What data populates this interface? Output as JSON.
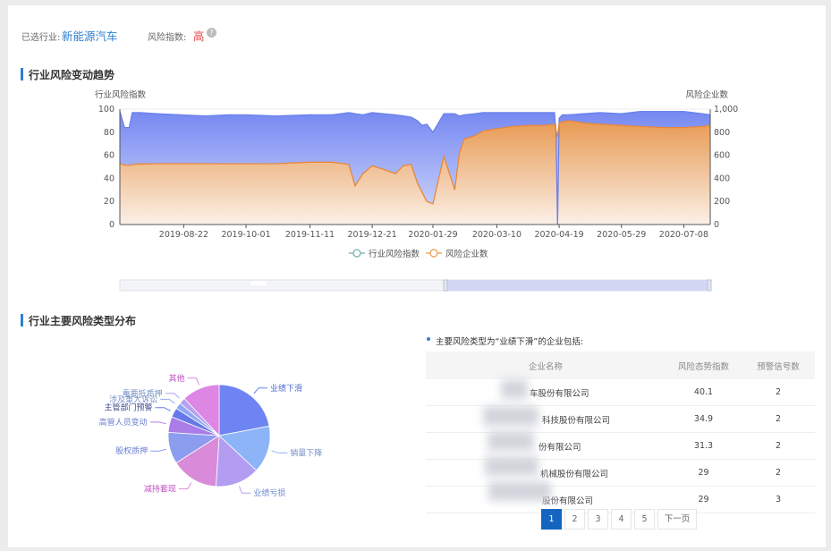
{
  "filter": {
    "industry_label": "已选行业:",
    "industry_value": "新能源汽车",
    "risk_label": "风险指数:",
    "risk_value": "高",
    "help_icon": "question-circle-icon"
  },
  "trend": {
    "title": "行业风险变动趋势",
    "legend_label": [
      "行业风险指数",
      "风险企业数"
    ]
  },
  "distribution": {
    "title": "行业主要风险类型分布",
    "list_caption": "主要风险类型为“业绩下滑”的企业包括:",
    "columns": [
      "企业名称",
      "风险态势指数",
      "预警信号数"
    ],
    "rows": [
      {
        "name": "车股份有限公司",
        "index": "40.1",
        "signals": "2"
      },
      {
        "name": "科技股份有限公司",
        "index": "34.9",
        "signals": "2"
      },
      {
        "name": "份有限公司",
        "index": "31.3",
        "signals": "2"
      },
      {
        "name": "机械股份有限公司",
        "index": "29",
        "signals": "2"
      },
      {
        "name": "股份有限公司",
        "index": "29",
        "signals": "3"
      }
    ],
    "pagination": {
      "pages": [
        "1",
        "2",
        "3",
        "4",
        "5"
      ],
      "current": "1",
      "next_label": "下一页"
    }
  },
  "colors": {
    "accent": "#2f7fd0",
    "risk_high": "#e64c4c",
    "series_index": "#7b8ff0",
    "series_count": "#ee9a4a"
  },
  "chart_data": [
    {
      "type": "area",
      "title": "",
      "xlabel": "",
      "ylabel": "行业风险指数",
      "y2label": "风险企业数",
      "x_ticks": [
        "2019-08-22",
        "2019-10-01",
        "2019-11-11",
        "2019-12-21",
        "2020-01-29",
        "2020-03-10",
        "2020-04-19",
        "2020-05-29",
        "2020-07-08"
      ],
      "ylim": [
        0,
        100
      ],
      "y_ticks": [
        "0",
        "20",
        "40",
        "60",
        "80",
        "100"
      ],
      "y2lim": [
        0,
        1000
      ],
      "y2_ticks": [
        "0",
        "200",
        "400",
        "600",
        "800",
        "1,000"
      ],
      "legend": "bottom-center",
      "grid": true,
      "x": [
        "2019-07-12",
        "2019-07-15",
        "2019-07-18",
        "2019-07-20",
        "2019-07-25",
        "2019-08-05",
        "2019-08-20",
        "2019-09-05",
        "2019-09-20",
        "2019-10-01",
        "2019-10-20",
        "2019-11-11",
        "2019-11-25",
        "2019-12-01",
        "2019-12-06",
        "2019-12-10",
        "2019-12-15",
        "2019-12-21",
        "2019-12-28",
        "2020-01-05",
        "2020-01-10",
        "2020-01-15",
        "2020-01-19",
        "2020-01-22",
        "2020-01-25",
        "2020-01-29",
        "2020-02-05",
        "2020-02-12",
        "2020-02-15",
        "2020-02-18",
        "2020-02-25",
        "2020-03-01",
        "2020-03-10",
        "2020-03-20",
        "2020-03-31",
        "2020-04-10",
        "2020-04-16",
        "2020-04-17",
        "2020-04-18",
        "2020-04-19",
        "2020-04-21",
        "2020-04-25",
        "2020-05-05",
        "2020-05-15",
        "2020-05-29",
        "2020-06-10",
        "2020-06-25",
        "2020-07-08",
        "2020-07-20",
        "2020-07-25"
      ],
      "series": [
        {
          "name": "行业风险指数",
          "values": [
            98,
            84,
            84,
            97,
            97,
            96,
            95,
            94,
            95,
            95,
            94,
            95,
            95,
            96,
            97,
            96,
            95,
            97,
            96,
            95,
            94,
            93,
            90,
            86,
            87,
            80,
            96,
            96,
            94,
            95,
            96,
            97,
            97,
            97,
            97,
            97,
            97,
            80,
            0,
            92,
            95,
            95,
            96,
            97,
            96,
            98,
            98,
            98,
            96,
            95
          ]
        },
        {
          "name": "风险企业数",
          "values": [
            530,
            515,
            512,
            520,
            525,
            527,
            528,
            527,
            526,
            526,
            527,
            540,
            540,
            530,
            520,
            335,
            440,
            510,
            480,
            440,
            510,
            520,
            360,
            280,
            200,
            180,
            590,
            300,
            620,
            740,
            770,
            810,
            830,
            850,
            860,
            860,
            870,
            820,
            760,
            880,
            890,
            900,
            880,
            870,
            860,
            850,
            840,
            840,
            850,
            860
          ]
        }
      ]
    },
    {
      "type": "pie",
      "title": "",
      "labels": [
        "业绩下滑",
        "销量下降",
        "业绩亏损",
        "减持套现",
        "股权质押",
        "高管人员变动",
        "主管部门预警",
        "涉及重大诉讼",
        "重要抵质押",
        "其他"
      ],
      "values": [
        22,
        15,
        14,
        15,
        10,
        5,
        3,
        2,
        2,
        12
      ],
      "colors": [
        "#6d84f2",
        "#8db4f6",
        "#b39df2",
        "#d98ad8",
        "#8c9cef",
        "#aa7de8",
        "#6679ea",
        "#92a7f3",
        "#b6a2f0",
        "#dd86e4"
      ],
      "label_colors": [
        "#4a6ad0",
        "#7791c8",
        "#6a88cc",
        "#c04fc0",
        "#6a7fd0",
        "#6a7fd0",
        "#3c4a90",
        "#7791c8",
        "#7791c8",
        "#c04fc0"
      ]
    }
  ]
}
